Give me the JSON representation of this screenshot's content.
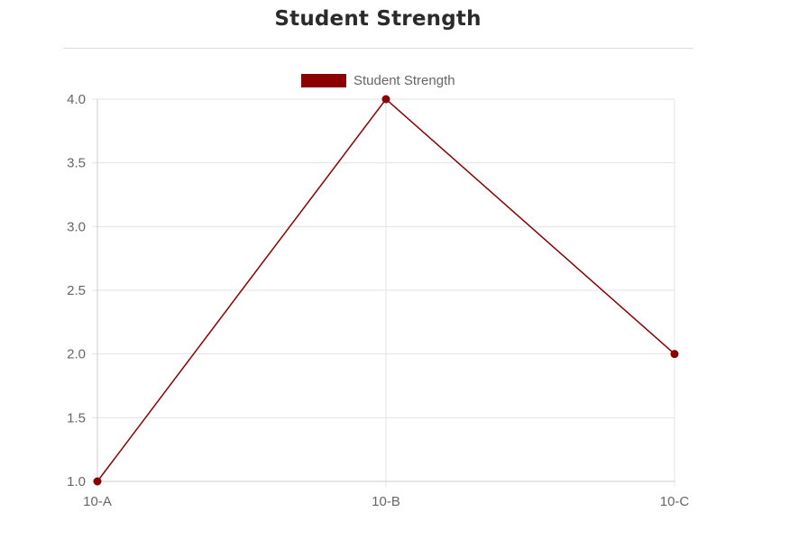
{
  "page": {
    "title": "Student Strength"
  },
  "colors": {
    "series": "#8b0000",
    "grid": "#e3e3e3",
    "axis": "#cccccc",
    "tick_text": "#666666",
    "title_text": "#2b2b2b"
  },
  "chart_data": {
    "type": "line",
    "categories": [
      "10-A",
      "10-B",
      "10-C"
    ],
    "series": [
      {
        "name": "Student Strength",
        "values": [
          1,
          4,
          2
        ]
      }
    ],
    "ylim": [
      1.0,
      4.0
    ],
    "yticks": [
      "1.0",
      "1.5",
      "2.0",
      "2.5",
      "3.0",
      "3.5",
      "4.0"
    ],
    "grid": true,
    "legend_position": "top-center",
    "xlabel": "",
    "ylabel": ""
  }
}
